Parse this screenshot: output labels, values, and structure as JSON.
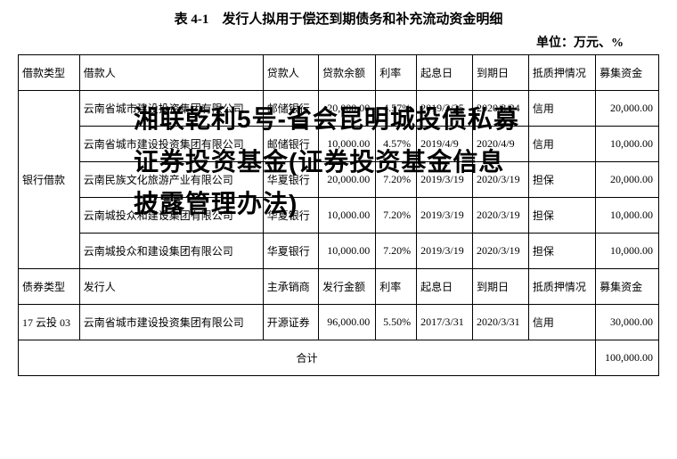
{
  "title": "表 4-1　发行人拟用于偿还到期债务和补充流动资金明细",
  "unit": "单位：万元、%",
  "headers1": {
    "c0": "借款类型",
    "c1": "借款人",
    "c2": "贷款人",
    "c3": "贷款余额",
    "c4": "利率",
    "c5": "起息日",
    "c6": "到期日",
    "c7": "抵质押情况",
    "c8": "募集资金"
  },
  "headers2": {
    "c0": "债券类型",
    "c1": "发行人",
    "c2": "主承销商",
    "c3": "发行金额",
    "c4": "利率",
    "c5": "起息日",
    "c6": "到期日",
    "c7": "抵质押情况",
    "c8": "募集资金"
  },
  "rowgroup_bank": "银行借款",
  "rows": [
    {
      "borrower": "云南省城市建设投资集团有限公司",
      "lender": "邮储银行",
      "balance": "20,000.00",
      "rate": "4.57%",
      "start": "2019/3/25",
      "due": "2020/3/24",
      "collateral": "信用",
      "raised": "20,000.00"
    },
    {
      "borrower": "云南省城市建设投资集团有限公司",
      "lender": "邮储银行",
      "balance": "10,000.00",
      "rate": "4.57%",
      "start": "2019/4/9",
      "due": "2020/4/9",
      "collateral": "信用",
      "raised": "10,000.00"
    },
    {
      "borrower": "云南民族文化旅游产业有限公司",
      "lender": "华夏银行",
      "balance": "20,000.00",
      "rate": "7.20%",
      "start": "2019/3/19",
      "due": "2020/3/19",
      "collateral": "担保",
      "raised": "20,000.00"
    },
    {
      "borrower": "云南城投众和建设集团有限公司",
      "lender": "华夏银行",
      "balance": "10,000.00",
      "rate": "7.20%",
      "start": "2019/3/19",
      "due": "2020/3/19",
      "collateral": "担保",
      "raised": "10,000.00"
    },
    {
      "borrower": "云南城投众和建设集团有限公司",
      "lender": "华夏银行",
      "balance": "10,000.00",
      "rate": "7.20%",
      "start": "2019/3/19",
      "due": "2020/3/19",
      "collateral": "担保",
      "raised": "10,000.00"
    }
  ],
  "bond": {
    "type": "17 云投 03",
    "issuer": "云南省城市建设投资集团有限公司",
    "underwriter": "开源证券",
    "amount": "96,000.00",
    "rate": "5.50%",
    "start": "2017/3/31",
    "due": "2020/3/31",
    "collateral": "信用",
    "raised": "30,000.00"
  },
  "total_label": "合计",
  "total_value": "100,000.00",
  "overlay_text": "湘联乾利5号-省会昆明城投债私募证券投资基金(证券投资基金信息披露管理办法)",
  "styling": {
    "page_bg": "#ffffff",
    "border_color": "#000000",
    "title_fontsize": 15,
    "cell_fontsize": 12,
    "overlay_fontsize": 28,
    "overlay_fontweight": 900,
    "overlay_color": "#000000",
    "font_family_body": "SimSun",
    "font_family_overlay": "SimHei"
  }
}
